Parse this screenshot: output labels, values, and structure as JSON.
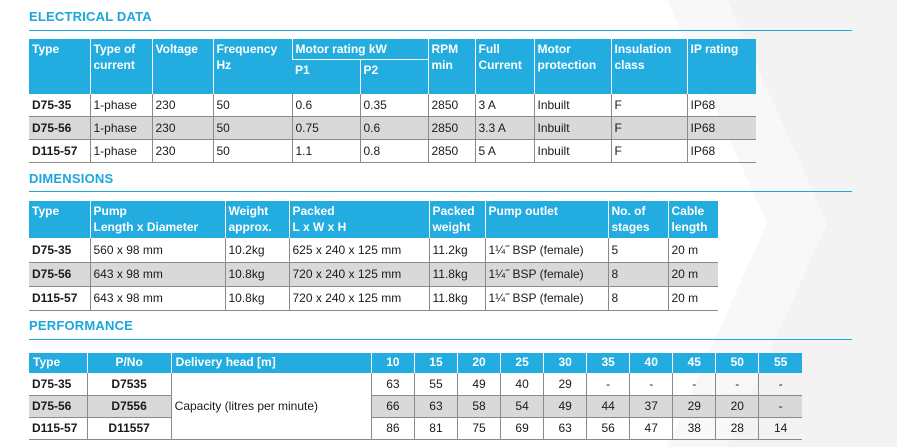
{
  "electrical": {
    "title": "ELECTRICAL DATA",
    "headers": {
      "type": "Type",
      "current_1": "Type of",
      "current_2": "current",
      "voltage": "Voltage",
      "frequency_1": "Frequency",
      "frequency_2": "Hz",
      "motor_rating": "Motor rating kW",
      "p1": "P1",
      "p2": "P2",
      "rpm_1": "RPM",
      "rpm_2": "min",
      "full_1": "Full",
      "full_2": "Current",
      "protection_1": "Motor",
      "protection_2": "protection",
      "insulation_1": "Insulation",
      "insulation_2": "class",
      "ip": "IP rating"
    },
    "rows": [
      {
        "type": "D75-35",
        "current": "1-phase",
        "voltage": "230",
        "frequency": "50",
        "p1": "0.6",
        "p2": "0.35",
        "rpm": "2850",
        "full": "3 A",
        "protection": "Inbuilt",
        "insulation": "F",
        "ip": "IP68"
      },
      {
        "type": "D75-56",
        "current": "1-phase",
        "voltage": "230",
        "frequency": "50",
        "p1": "0.75",
        "p2": "0.6",
        "rpm": "2850",
        "full": "3.3 A",
        "protection": "Inbuilt",
        "insulation": "F",
        "ip": "IP68"
      },
      {
        "type": "D115-57",
        "current": "1-phase",
        "voltage": "230",
        "frequency": "50",
        "p1": "1.1",
        "p2": "0.8",
        "rpm": "2850",
        "full": "5 A",
        "protection": "Inbuilt",
        "insulation": "F",
        "ip": "IP68"
      }
    ]
  },
  "dimensions": {
    "title": "DIMENSIONS",
    "headers": {
      "type": "Type",
      "pump_1": "Pump",
      "pump_2": "Length x Diameter",
      "weight_1": "Weight",
      "weight_2": "approx.",
      "packed_1": "Packed",
      "packed_2": "L x W x H",
      "packed_weight_1": "Packed",
      "packed_weight_2": "weight",
      "outlet": "Pump outlet",
      "stages_1": "No. of",
      "stages_2": "stages",
      "cable_1": "Cable",
      "cable_2": "length"
    },
    "rows": [
      {
        "type": "D75-35",
        "pump": "560 x 98 mm",
        "weight": "10.2kg",
        "packed": "625 x 240 x 125 mm",
        "packed_weight": "11.2kg",
        "outlet": "1¼˝ BSP (female)",
        "stages": "5",
        "cable": "20 m"
      },
      {
        "type": "D75-56",
        "pump": "643 x 98 mm",
        "weight": "10.8kg",
        "packed": "720 x 240 x 125 mm",
        "packed_weight": "11.8kg",
        "outlet": "1¼˝ BSP (female)",
        "stages": "8",
        "cable": "20 m"
      },
      {
        "type": "D115-57",
        "pump": "643 x 98 mm",
        "weight": "10.8kg",
        "packed": "720 x 240 x 125 mm",
        "packed_weight": "11.8kg",
        "outlet": "1¼˝ BSP (female)",
        "stages": "8",
        "cable": "20 m"
      }
    ]
  },
  "performance": {
    "title": "PERFORMANCE",
    "headers": {
      "type": "Type",
      "pno": "P/No",
      "delivery": "Delivery head [m]",
      "heads": [
        "10",
        "15",
        "20",
        "25",
        "30",
        "35",
        "40",
        "45",
        "50",
        "55"
      ]
    },
    "capacity_label": "Capacity (litres per minute)",
    "rows": [
      {
        "type": "D75-35",
        "pno": "D7535",
        "values": [
          "63",
          "55",
          "49",
          "40",
          "29",
          "-",
          "-",
          "-",
          "-",
          "-"
        ]
      },
      {
        "type": "D75-56",
        "pno": "D7556",
        "values": [
          "66",
          "63",
          "58",
          "54",
          "49",
          "44",
          "37",
          "29",
          "20",
          "-"
        ]
      },
      {
        "type": "D115-57",
        "pno": "D11557",
        "values": [
          "86",
          "81",
          "75",
          "69",
          "63",
          "56",
          "47",
          "38",
          "28",
          "14"
        ]
      }
    ]
  },
  "colors": {
    "accent": "#1ba7dc",
    "header_bg": "#22ace0",
    "shaded_row": "#d9d9d9"
  }
}
